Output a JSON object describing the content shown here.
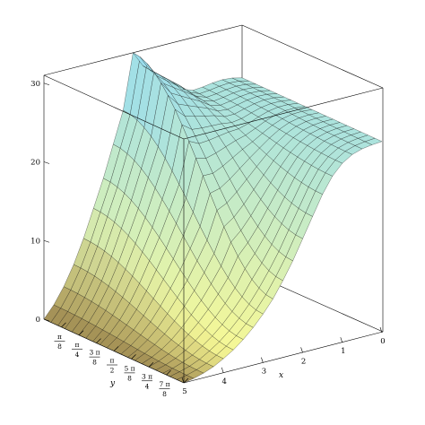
{
  "chart_data": {
    "type": "surface3d",
    "title": "",
    "xlabel": "x",
    "ylabel": "y",
    "zlabel": "",
    "xlim": [
      0,
      5
    ],
    "ylim": [
      0,
      3.1416
    ],
    "zlim": [
      0,
      31
    ],
    "x_ticks": [
      {
        "value": 0,
        "label": "0"
      },
      {
        "value": 1,
        "label": "1"
      },
      {
        "value": 2,
        "label": "2"
      },
      {
        "value": 3,
        "label": "3"
      },
      {
        "value": 4,
        "label": "4"
      },
      {
        "value": 5,
        "label": "5"
      }
    ],
    "y_ticks": [
      {
        "value": 0.3927,
        "num": "π",
        "den": "8"
      },
      {
        "value": 0.7854,
        "num": "π",
        "den": "4"
      },
      {
        "value": 1.1781,
        "num": "3 π",
        "den": "8"
      },
      {
        "value": 1.5708,
        "num": "π",
        "den": "2"
      },
      {
        "value": 1.9635,
        "num": "5 π",
        "den": "8"
      },
      {
        "value": 2.3562,
        "num": "3 π",
        "den": "4"
      },
      {
        "value": 2.7489,
        "num": "7 π",
        "den": "8"
      }
    ],
    "z_ticks": [
      {
        "value": 0,
        "label": "0"
      },
      {
        "value": 10,
        "label": "10"
      },
      {
        "value": 20,
        "label": "20"
      },
      {
        "value": 30,
        "label": "30"
      }
    ],
    "grid": {
      "x_lines": 21,
      "y_lines": 21
    },
    "surface": {
      "x_samples": [
        0,
        0.25,
        0.5,
        0.75,
        1,
        1.25,
        1.5,
        1.75,
        2,
        2.25,
        2.5,
        2.75,
        3,
        3.25,
        3.5,
        3.75,
        4,
        4.25,
        4.5,
        4.75,
        5
      ],
      "z_at_y0": [
        24.3,
        24.6,
        24.7,
        24.6,
        24.4,
        24.3,
        24.8,
        26.0,
        27.0,
        28.0,
        29.0,
        31.0,
        24.0,
        20.0,
        16.0,
        12.5,
        9.0,
        6.0,
        3.5,
        1.5,
        0
      ],
      "z_at_ymax": [
        24.3,
        24.2,
        24.0,
        23.6,
        22.8,
        21.5,
        19.5,
        17.0,
        14.5,
        12.0,
        9.8,
        7.8,
        6.2,
        4.8,
        3.6,
        2.6,
        1.8,
        1.1,
        0.6,
        0.25,
        0
      ],
      "color_low": "#fffa8c",
      "color_mid": "#c9ecc4",
      "color_high": "#bfeaf6",
      "color_dark": "#5a3a28"
    },
    "box_color": "#000000",
    "mesh_color": "#000000"
  }
}
